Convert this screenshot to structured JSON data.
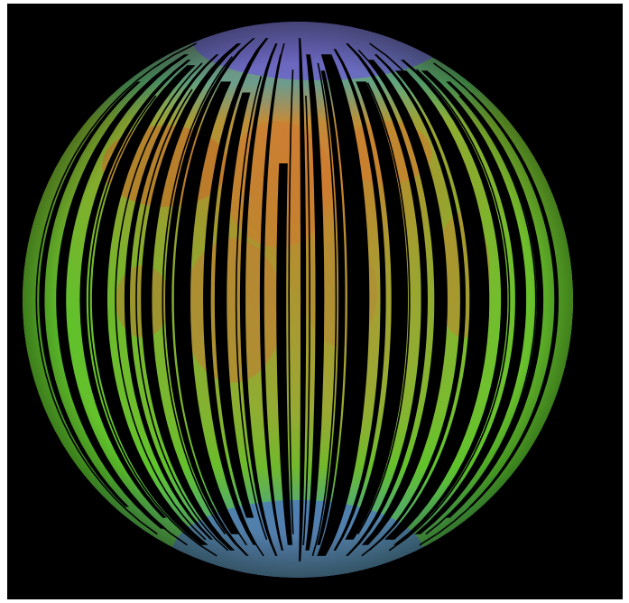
{
  "image": {
    "subject": "moon-mineral-map",
    "colors": {
      "frame": "#ffffff",
      "background": "#000000",
      "polar": "#6a3fd8",
      "highlands_blue": "#3e7ee6",
      "mid_green": "#66c22c",
      "maria_orange": "#cf7a2a",
      "gap": "#000000"
    }
  }
}
